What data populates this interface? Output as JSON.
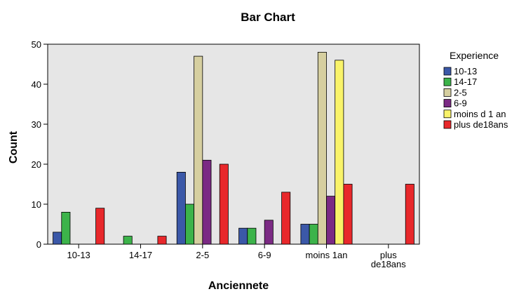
{
  "chart_data": {
    "type": "bar",
    "title": "Bar Chart",
    "xlabel": "Anciennete",
    "ylabel": "Count",
    "ylim": [
      0,
      50
    ],
    "yticks": [
      0,
      10,
      20,
      30,
      40,
      50
    ],
    "grid": false,
    "legend_position": "right",
    "legend_title": "Experience",
    "categories": [
      "10-13",
      "14-17",
      "2-5",
      "6-9",
      "moins 1an",
      "plus de18ans"
    ],
    "category_tick_lines": [
      [
        "10-13"
      ],
      [
        "14-17"
      ],
      [
        "2-5"
      ],
      [
        "6-9"
      ],
      [
        "moins 1an"
      ],
      [
        "plus",
        "de18ans"
      ]
    ],
    "series": [
      {
        "name": "10-13",
        "color": "#3b58a8",
        "values": [
          3,
          null,
          18,
          4,
          5,
          null
        ]
      },
      {
        "name": "14-17",
        "color": "#3cb34a",
        "values": [
          8,
          2,
          10,
          4,
          5,
          null
        ]
      },
      {
        "name": "2-5",
        "color": "#d6cfa0",
        "values": [
          null,
          null,
          47,
          null,
          48,
          null
        ]
      },
      {
        "name": "6-9",
        "color": "#7b2a84",
        "values": [
          null,
          null,
          21,
          6,
          12,
          null
        ]
      },
      {
        "name": "moins d 1 an",
        "color": "#f9f36a",
        "values": [
          null,
          null,
          null,
          null,
          46,
          null
        ]
      },
      {
        "name": "plus de18ans",
        "color": "#e8282b",
        "values": [
          9,
          2,
          20,
          13,
          15,
          15
        ]
      }
    ],
    "plot_background": "#e6e6e6"
  }
}
